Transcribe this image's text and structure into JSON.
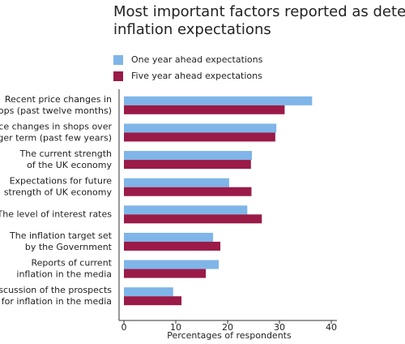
{
  "chart_data": {
    "type": "bar",
    "orientation": "horizontal",
    "title": [
      "Most important factors reported as determining",
      "inflation expectations"
    ],
    "x_label": "Percentages of respondents",
    "categories": [
      [
        "Recent price changes in",
        "shops (past twelve months)"
      ],
      [
        "Price changes in shops over",
        "longer term (past few years)"
      ],
      [
        "The current strength",
        "of the UK economy"
      ],
      [
        "Expectations for future",
        "strength of UK economy"
      ],
      [
        "The level of interest rates"
      ],
      [
        "The inflation target set",
        "by the Government"
      ],
      [
        "Reports of current",
        "inflation in the media"
      ],
      [
        "Discussion of the prospects",
        "for inflation in the media"
      ]
    ],
    "series": [
      {
        "name": "One year ahead expectations",
        "color": "#7fb5e8",
        "values": [
          36.3,
          29.4,
          24.7,
          20.3,
          23.8,
          17.2,
          18.3,
          9.5
        ]
      },
      {
        "name": "Five year ahead expectations",
        "color": "#9a1a48",
        "values": [
          31,
          29.2,
          24.5,
          24.6,
          26.6,
          18.6,
          15.8,
          11.1
        ]
      }
    ],
    "xlim": [
      0,
      40
    ],
    "xticks": [
      0,
      10,
      20,
      30,
      40
    ]
  }
}
